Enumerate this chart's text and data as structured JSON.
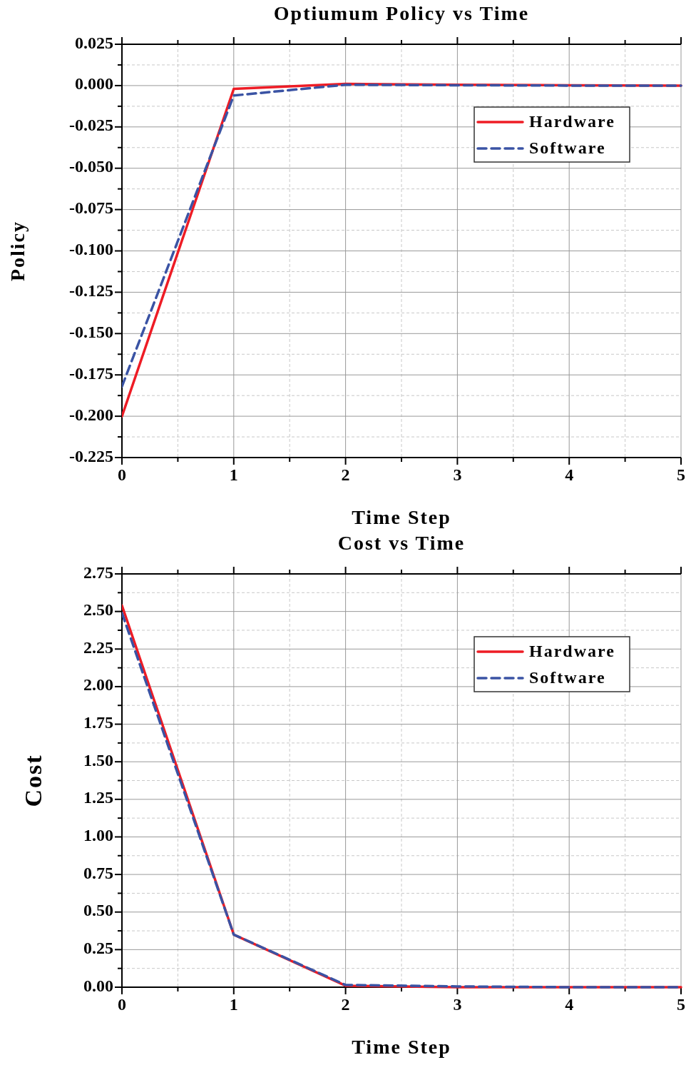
{
  "chart_data": [
    {
      "type": "line",
      "title": "Optiumum Policy vs Time",
      "xlabel": "Time Step",
      "ylabel": "Policy",
      "x": [
        0,
        1,
        2,
        3,
        4,
        5
      ],
      "series": [
        {
          "name": "Hardware",
          "color": "#ee1c25",
          "line_style": "solid",
          "values": [
            -0.2,
            -0.002,
            0.001,
            0.0005,
            0.0002,
            0
          ]
        },
        {
          "name": "Software",
          "color": "#3a53a4",
          "line_style": "dashed",
          "values": [
            -0.182,
            -0.006,
            0.0005,
            0.0002,
            0,
            0
          ]
        }
      ],
      "xlim": [
        0,
        5
      ],
      "xticks": [
        0,
        1,
        2,
        3,
        4,
        5
      ],
      "ylim": [
        -0.225,
        0.025
      ],
      "yticks": [
        {
          "value": -0.225,
          "label": "-0.225"
        },
        {
          "value": -0.2,
          "label": "-0.200"
        },
        {
          "value": -0.175,
          "label": "-0.175"
        },
        {
          "value": -0.15,
          "label": "-0.150"
        },
        {
          "value": -0.125,
          "label": "-0.125"
        },
        {
          "value": -0.1,
          "label": "-0.100"
        },
        {
          "value": -0.075,
          "label": "-0.075"
        },
        {
          "value": -0.05,
          "label": "-0.050"
        },
        {
          "value": -0.025,
          "label": "-0.025"
        },
        {
          "value": 0,
          "label": "0.000"
        },
        {
          "value": 0.025,
          "label": "0.025"
        }
      ],
      "grid": true,
      "legend": "right",
      "marker": "none"
    },
    {
      "type": "line",
      "title": "Cost vs Time",
      "xlabel": "Time Step",
      "ylabel": "Cost",
      "x": [
        0,
        1,
        2,
        3,
        4,
        5
      ],
      "series": [
        {
          "name": "Hardware",
          "color": "#ee1c25",
          "line_style": "solid",
          "values": [
            2.54,
            0.35,
            0.01,
            0,
            0,
            0
          ]
        },
        {
          "name": "Software",
          "color": "#3a53a4",
          "line_style": "dashed",
          "values": [
            2.49,
            0.35,
            0.015,
            0.005,
            0,
            0
          ]
        }
      ],
      "xlim": [
        0,
        5
      ],
      "xticks": [
        0,
        1,
        2,
        3,
        4,
        5
      ],
      "ylim": [
        0,
        2.75
      ],
      "yticks": [
        {
          "value": 0,
          "label": "0.00"
        },
        {
          "value": 0.25,
          "label": "0.25"
        },
        {
          "value": 0.5,
          "label": "0.50"
        },
        {
          "value": 0.75,
          "label": "0.75"
        },
        {
          "value": 1,
          "label": "1.00"
        },
        {
          "value": 1.25,
          "label": "1.25"
        },
        {
          "value": 1.5,
          "label": "1.50"
        },
        {
          "value": 1.75,
          "label": "1.75"
        },
        {
          "value": 2,
          "label": "2.00"
        },
        {
          "value": 2.25,
          "label": "2.25"
        },
        {
          "value": 2.5,
          "label": "2.50"
        },
        {
          "value": 2.75,
          "label": "2.75"
        }
      ],
      "grid": true,
      "legend": "right",
      "marker": "none"
    }
  ]
}
